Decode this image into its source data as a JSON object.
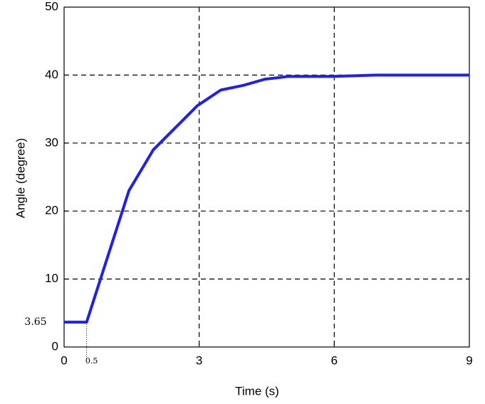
{
  "chart_data": {
    "type": "line",
    "x_label": "Time (s)",
    "y_label": "Angle (degree)",
    "series": [
      {
        "name": "Angle",
        "color": "#1f1ff0",
        "x": [
          0,
          0.5,
          1.44,
          1.98,
          2.96,
          3.48,
          3.99,
          4.46,
          4.98,
          5.95,
          6.93,
          9
        ],
        "values": [
          3.65,
          3.65,
          23,
          29,
          35.5,
          37.8,
          38.5,
          39.4,
          39.8,
          39.8,
          40,
          40
        ]
      }
    ],
    "annotations": [
      "3.65",
      "0.5"
    ],
    "xlim": [
      0,
      9
    ],
    "xticks": [
      0,
      3,
      6,
      9
    ],
    "ylim": [
      0,
      50
    ],
    "yticks": [
      0,
      10,
      20,
      30,
      40,
      50
    ],
    "grid": true
  }
}
